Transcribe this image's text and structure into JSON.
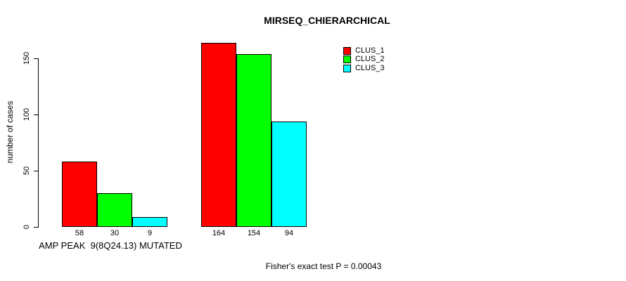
{
  "title": "MIRSEQ_CHIERARCHICAL",
  "footer": "Fisher's exact test P = 0.00043",
  "y_axis": {
    "label": "number of cases",
    "ticks": [
      "0",
      "50",
      "100",
      "150"
    ]
  },
  "x_axis": {
    "group1_label": "AMP PEAK  9(8Q24.13) MUTATED",
    "group2_label": ""
  },
  "legend": {
    "entries": [
      {
        "label": "CLUS_1",
        "color": "#ff0000"
      },
      {
        "label": "CLUS_2",
        "color": "#00ff00"
      },
      {
        "label": "CLUS_3",
        "color": "#00ffff"
      }
    ]
  },
  "chart_data": {
    "type": "bar",
    "title": "MIRSEQ_CHIERARCHICAL",
    "xlabel": "",
    "ylabel": "number of cases",
    "ylim": [
      0,
      150
    ],
    "yticks": [
      0,
      50,
      100,
      150
    ],
    "grid": false,
    "legend_position": "top-right",
    "bar_value_labels": true,
    "categories": [
      "AMP PEAK  9(8Q24.13) MUTATED",
      ""
    ],
    "series": [
      {
        "name": "CLUS_1",
        "color": "#ff0000",
        "values": [
          58,
          164
        ]
      },
      {
        "name": "CLUS_2",
        "color": "#00ff00",
        "values": [
          30,
          154
        ]
      },
      {
        "name": "CLUS_3",
        "color": "#00ffff",
        "values": [
          9,
          94
        ]
      }
    ],
    "annotation": "Fisher's exact test P = 0.00043"
  }
}
